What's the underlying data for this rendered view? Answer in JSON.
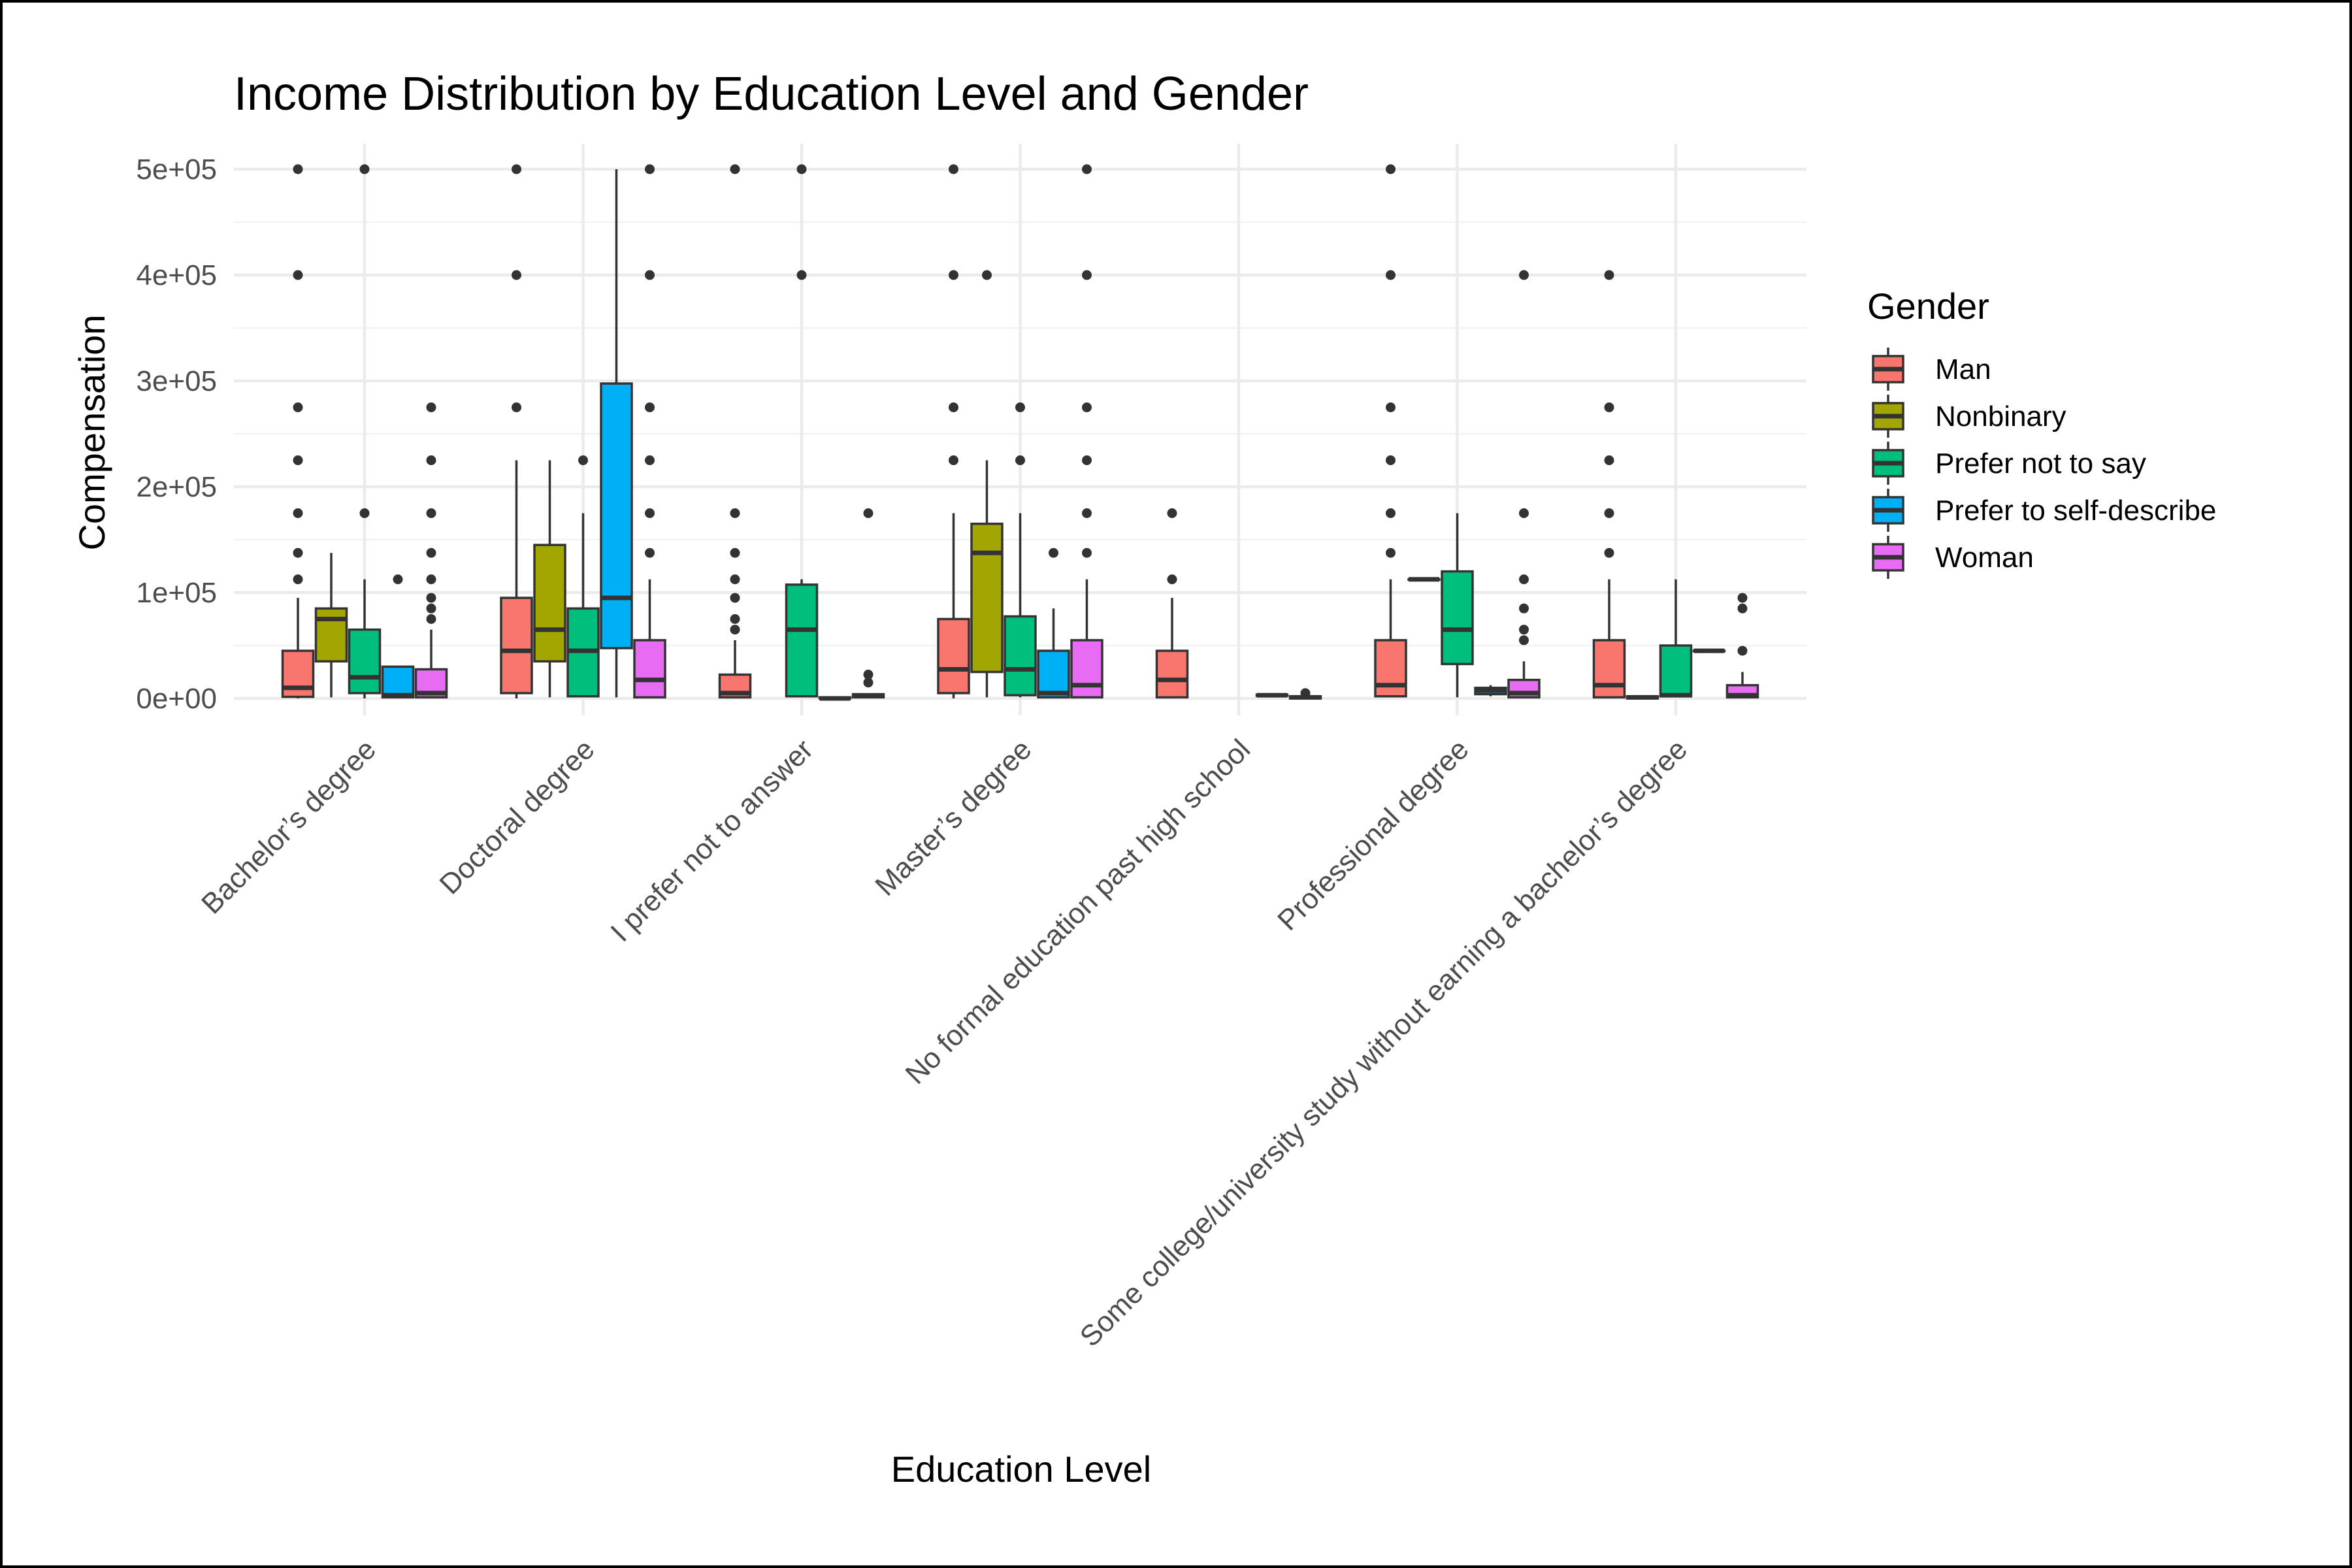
{
  "chart_data": {
    "type": "boxplot",
    "title": "Income Distribution by Education Level and Gender",
    "xlabel": "Education Level",
    "ylabel": "Compensation",
    "ylim": [
      0,
      500000
    ],
    "y_ticks": [
      "0e+00",
      "1e+05",
      "2e+05",
      "3e+05",
      "4e+05",
      "5e+05"
    ],
    "y_tick_values": [
      0,
      100000,
      200000,
      300000,
      400000,
      500000
    ],
    "grid": true,
    "legend": {
      "title": "Gender",
      "position": "right"
    },
    "categories": [
      "Bachelor’s degree",
      "Doctoral degree",
      "I prefer not to answer",
      "Master’s degree",
      "No formal education past high school",
      "Professional degree",
      "Some college/university study without earning a bachelor’s degree"
    ],
    "series": [
      {
        "name": "Man",
        "color": "#F8766D"
      },
      {
        "name": "Nonbinary",
        "color": "#A3A500"
      },
      {
        "name": "Prefer not to say",
        "color": "#00BF7D"
      },
      {
        "name": "Prefer to self-describe",
        "color": "#00B0F6"
      },
      {
        "name": "Woman",
        "color": "#E76BF3"
      }
    ],
    "boxes": [
      {
        "category": "Bachelor’s degree",
        "series": "Man",
        "min": 0,
        "q1": 1500,
        "median": 10000,
        "q3": 45000,
        "max": 95000,
        "outliers": [
          112500,
          137500,
          175000,
          225000,
          275000,
          400000,
          500000
        ]
      },
      {
        "category": "Bachelor’s degree",
        "series": "Nonbinary",
        "min": 1000,
        "q1": 35000,
        "median": 75000,
        "q3": 85000,
        "max": 137500,
        "outliers": []
      },
      {
        "category": "Bachelor’s degree",
        "series": "Prefer not to say",
        "min": 0,
        "q1": 5000,
        "median": 20000,
        "q3": 65000,
        "max": 112500,
        "outliers": [
          175000,
          500000
        ]
      },
      {
        "category": "Bachelor’s degree",
        "series": "Prefer to self-describe",
        "min": 0,
        "q1": 1000,
        "median": 3000,
        "q3": 30000,
        "max": 30000,
        "outliers": [
          112500
        ]
      },
      {
        "category": "Bachelor’s degree",
        "series": "Woman",
        "min": 0,
        "q1": 1000,
        "median": 5000,
        "q3": 27500,
        "max": 65000,
        "outliers": [
          75000,
          85000,
          95000,
          112500,
          137500,
          175000,
          225000,
          275000
        ]
      },
      {
        "category": "Doctoral degree",
        "series": "Man",
        "min": 0,
        "q1": 5000,
        "median": 45000,
        "q3": 95000,
        "max": 225000,
        "outliers": [
          275000,
          400000,
          500000
        ]
      },
      {
        "category": "Doctoral degree",
        "series": "Nonbinary",
        "min": 1000,
        "q1": 35000,
        "median": 65000,
        "q3": 145000,
        "max": 225000,
        "outliers": []
      },
      {
        "category": "Doctoral degree",
        "series": "Prefer not to say",
        "min": 1000,
        "q1": 2000,
        "median": 45000,
        "q3": 85000,
        "max": 175000,
        "outliers": [
          225000
        ]
      },
      {
        "category": "Doctoral degree",
        "series": "Prefer to self-describe",
        "min": 1000,
        "q1": 47500,
        "median": 95000,
        "q3": 297500,
        "max": 500000,
        "outliers": []
      },
      {
        "category": "Doctoral degree",
        "series": "Woman",
        "min": 0,
        "q1": 1000,
        "median": 17500,
        "q3": 55000,
        "max": 112500,
        "outliers": [
          137500,
          175000,
          225000,
          275000,
          400000,
          500000
        ]
      },
      {
        "category": "I prefer not to answer",
        "series": "Man",
        "min": 0,
        "q1": 1000,
        "median": 5000,
        "q3": 22500,
        "max": 55000,
        "outliers": [
          65000,
          75000,
          95000,
          112500,
          137500,
          175000,
          500000
        ]
      },
      {
        "category": "I prefer not to answer",
        "series": "Prefer not to say",
        "min": 1000,
        "q1": 2000,
        "median": 65000,
        "q3": 107500,
        "max": 112500,
        "outliers": [
          400000,
          500000
        ]
      },
      {
        "category": "I prefer not to answer",
        "series": "Prefer to self-describe",
        "min": 0,
        "q1": 0,
        "median": 0,
        "q3": 1000,
        "max": 1000,
        "outliers": []
      },
      {
        "category": "I prefer not to answer",
        "series": "Woman",
        "min": 0,
        "q1": 1000,
        "median": 2500,
        "q3": 4000,
        "max": 5000,
        "outliers": [
          15000,
          22500,
          175000
        ]
      },
      {
        "category": "Master’s degree",
        "series": "Man",
        "min": 0,
        "q1": 5000,
        "median": 27500,
        "q3": 75000,
        "max": 175000,
        "outliers": [
          225000,
          275000,
          400000,
          500000
        ]
      },
      {
        "category": "Master’s degree",
        "series": "Nonbinary",
        "min": 1000,
        "q1": 25000,
        "median": 137500,
        "q3": 165000,
        "max": 225000,
        "outliers": [
          400000
        ]
      },
      {
        "category": "Master’s degree",
        "series": "Prefer not to say",
        "min": 1000,
        "q1": 3000,
        "median": 27500,
        "q3": 77500,
        "max": 175000,
        "outliers": [
          225000,
          275000
        ]
      },
      {
        "category": "Master’s degree",
        "series": "Prefer to self-describe",
        "min": 1000,
        "q1": 1000,
        "median": 5000,
        "q3": 45000,
        "max": 85000,
        "outliers": [
          137500
        ]
      },
      {
        "category": "Master’s degree",
        "series": "Woman",
        "min": 0,
        "q1": 1000,
        "median": 12500,
        "q3": 55000,
        "max": 112500,
        "outliers": [
          137500,
          175000,
          225000,
          275000,
          400000,
          500000
        ]
      },
      {
        "category": "No formal education past high school",
        "series": "Man",
        "min": 0,
        "q1": 1000,
        "median": 17500,
        "q3": 45000,
        "max": 95000,
        "outliers": [
          112500,
          175000
        ]
      },
      {
        "category": "No formal education past high school",
        "series": "Prefer to self-describe",
        "min": 2000,
        "q1": 2500,
        "median": 3000,
        "q3": 3500,
        "max": 4000,
        "outliers": []
      },
      {
        "category": "No formal education past high school",
        "series": "Woman",
        "min": 0,
        "q1": 0,
        "median": 1000,
        "q3": 2000,
        "max": 2500,
        "outliers": [
          5000
        ]
      },
      {
        "category": "Professional degree",
        "series": "Man",
        "min": 1000,
        "q1": 2000,
        "median": 12500,
        "q3": 55000,
        "max": 112500,
        "outliers": [
          137500,
          175000,
          225000,
          275000,
          400000,
          500000
        ]
      },
      {
        "category": "Professional degree",
        "series": "Nonbinary",
        "min": 112500,
        "q1": 112500,
        "median": 112500,
        "q3": 112500,
        "max": 112500,
        "outliers": []
      },
      {
        "category": "Professional degree",
        "series": "Prefer not to say",
        "min": 1000,
        "q1": 32500,
        "median": 65000,
        "q3": 120000,
        "max": 175000,
        "outliers": []
      },
      {
        "category": "Professional degree",
        "series": "Prefer to self-describe",
        "min": 2000,
        "q1": 4000,
        "median": 7500,
        "q3": 10000,
        "max": 12500,
        "outliers": []
      },
      {
        "category": "Professional degree",
        "series": "Woman",
        "min": 0,
        "q1": 1000,
        "median": 5000,
        "q3": 17500,
        "max": 35000,
        "outliers": [
          55000,
          65000,
          85000,
          112500,
          175000,
          400000
        ]
      },
      {
        "category": "Some college/university study without earning a bachelor’s degree",
        "series": "Man",
        "min": 0,
        "q1": 1000,
        "median": 12500,
        "q3": 55000,
        "max": 112500,
        "outliers": [
          137500,
          175000,
          225000,
          275000,
          400000
        ]
      },
      {
        "category": "Some college/university study without earning a bachelor’s degree",
        "series": "Nonbinary",
        "min": 0,
        "q1": 0,
        "median": 1000,
        "q3": 2000,
        "max": 2000,
        "outliers": []
      },
      {
        "category": "Some college/university study without earning a bachelor’s degree",
        "series": "Prefer not to say",
        "min": 1000,
        "q1": 2000,
        "median": 3000,
        "q3": 50000,
        "max": 112500,
        "outliers": []
      },
      {
        "category": "Some college/university study without earning a bachelor’s degree",
        "series": "Prefer to self-describe",
        "min": 45000,
        "q1": 45000,
        "median": 45000,
        "q3": 45000,
        "max": 45000,
        "outliers": []
      },
      {
        "category": "Some college/university study without earning a bachelor’s degree",
        "series": "Woman",
        "min": 0,
        "q1": 1000,
        "median": 3000,
        "q3": 12500,
        "max": 25000,
        "outliers": [
          45000,
          85000,
          95000
        ]
      }
    ]
  }
}
